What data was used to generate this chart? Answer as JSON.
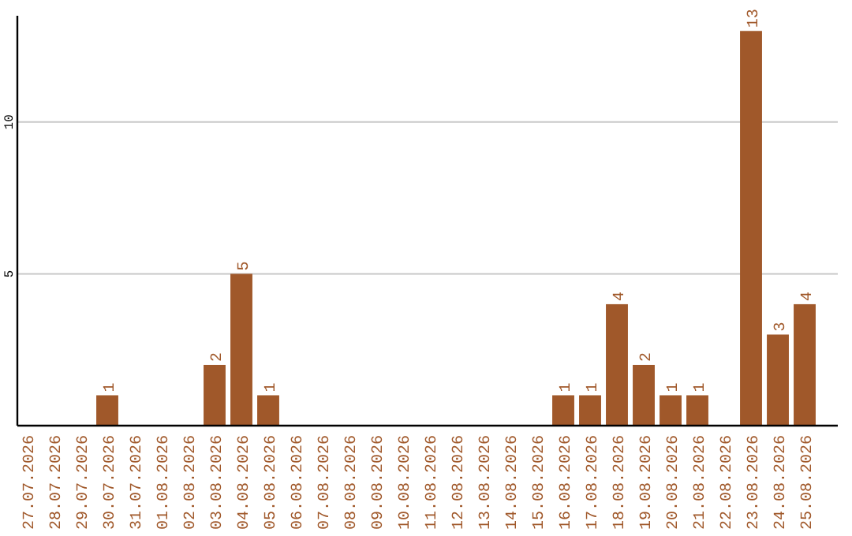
{
  "chart_data": {
    "type": "bar",
    "categories": [
      "27.07.2026",
      "28.07.2026",
      "29.07.2026",
      "30.07.2026",
      "31.07.2026",
      "01.08.2026",
      "02.08.2026",
      "03.08.2026",
      "04.08.2026",
      "05.08.2026",
      "06.08.2026",
      "07.08.2026",
      "08.08.2026",
      "09.08.2026",
      "10.08.2026",
      "11.08.2026",
      "12.08.2026",
      "13.08.2026",
      "14.08.2026",
      "15.08.2026",
      "16.08.2026",
      "17.08.2026",
      "18.08.2026",
      "19.08.2026",
      "20.08.2026",
      "21.08.2026",
      "22.08.2026",
      "23.08.2026",
      "24.08.2026",
      "25.08.2026"
    ],
    "values": [
      null,
      null,
      null,
      1,
      null,
      null,
      null,
      2,
      5,
      1,
      null,
      null,
      null,
      null,
      null,
      null,
      null,
      null,
      null,
      null,
      1,
      1,
      4,
      2,
      1,
      1,
      null,
      13,
      3,
      4
    ],
    "color": "#a0582a",
    "ylim": [
      0,
      13.5
    ],
    "yticks": [
      5,
      10
    ],
    "grid": "y",
    "data_labels": true
  }
}
